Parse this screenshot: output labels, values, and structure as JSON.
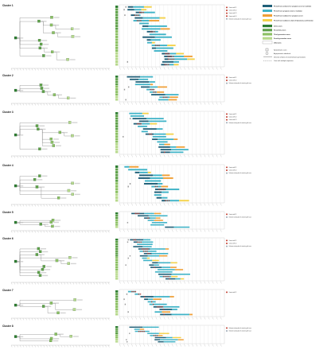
{
  "colors": {
    "dark_teal": "#1f5f78",
    "teal": "#3fb3c7",
    "orange": "#f0a038",
    "yellow": "#f4d24a",
    "index_green": "#2e7d32",
    "secondary_green": "#5fa14a",
    "third_green": "#8cc063",
    "fourth_green": "#b7d98c",
    "unknown": "#ffffff",
    "contact_red": "#c0392b",
    "exposure_gray": "#9a9a9a"
  },
  "clusters": [
    {
      "title": "Cluster 1",
      "notes": [
        "Contact with C1",
        "Contact with C2",
        "Contact with C3",
        "Contact with C4",
        "Unknown starting date of contacting with case"
      ],
      "legend": {
        "bars": [
          {
            "label": "Period from contacts for symptom onset or isolation"
          },
          {
            "label": "Period from symptom onset or isolation"
          },
          {
            "label": "Period from isolation for symptom onset"
          },
          {
            "label": "Period from isolation to date of laboratory confirmation"
          }
        ],
        "case_types": [
          {
            "label": "Index cases"
          },
          {
            "label": "Secondary cases"
          },
          {
            "label": "Third generation cases"
          },
          {
            "label": "Fourth generation cases"
          },
          {
            "label": "Unknowns"
          }
        ],
        "markers": [
          {
            "label": "Symptomatic cases"
          },
          {
            "label": "Asymptomatic individuals"
          },
          {
            "label": "Direction of dates of onset between generations"
          },
          {
            "label": "Case with multiple exposures"
          }
        ]
      }
    },
    {
      "title": "Cluster 2",
      "notes": [
        "Contact with C1",
        "Contact with C2",
        "Unknown starting date of contacting with case"
      ]
    },
    {
      "title": "Cluster 3",
      "notes": [
        "Contact with C1",
        "Contact with C2",
        "Contact with C3",
        "Unknown starting date of contacting with case"
      ]
    },
    {
      "title": "Cluster 4",
      "notes": [
        "Contact with C1",
        "Contact with C2",
        "Unknown starting date of contacting with case"
      ]
    },
    {
      "title": "Cluster 5",
      "notes": [
        "Contact with C1",
        "Unknown starting date of contacting with case"
      ]
    },
    {
      "title": "Cluster 6",
      "notes": [
        "Contact with C1",
        "Contact with C2",
        "Unknown starting date of contacting with case"
      ]
    },
    {
      "title": "Cluster 7",
      "notes": [
        "Contact with C1"
      ]
    },
    {
      "title": "Cluster 8",
      "notes": [
        "Unknown starting date of contacting with case",
        "Unknown starting date of contacting with case"
      ]
    }
  ]
}
